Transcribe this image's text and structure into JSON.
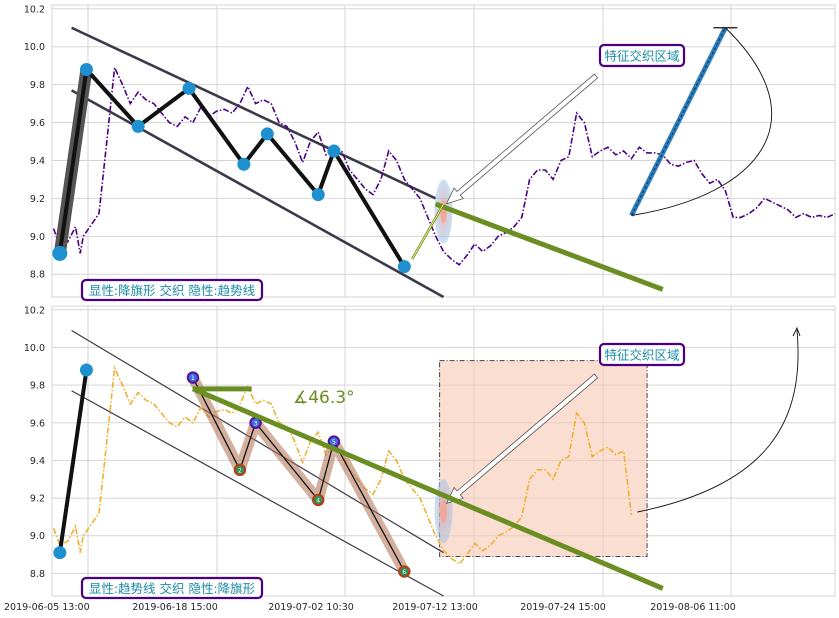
{
  "chart_data": [
    {
      "type": "line",
      "panel": "top",
      "x_ticks": [
        "2019-06-05 13:00",
        "2019-06-18 15:00",
        "2019-07-02 10:30",
        "2019-07-12 13:00",
        "2019-07-24 15:00",
        "2019-08-06 11:00"
      ],
      "y_ticks": [
        8.8,
        9.0,
        9.2,
        9.4,
        9.6,
        9.8,
        10.0,
        10.2
      ],
      "ylim": [
        8.68,
        10.22
      ],
      "grid": true,
      "series": [
        {
          "style": "dash-dot",
          "color": "#4b0082",
          "x": [
            0.2,
            1.0,
            2.0,
            3.0,
            3.6,
            4.0,
            5.0,
            6.0,
            7.0,
            8.0,
            9.0,
            10.0,
            11.0,
            12.0,
            13.0,
            14.0,
            15.0,
            16.0,
            17.0,
            18.0,
            19.0,
            20.0,
            21.0,
            22.0,
            23.0,
            24.0,
            25.0,
            26.0,
            27.0,
            28.0,
            29.0,
            30.0,
            31.0,
            32.0,
            33.0,
            34.0,
            35.0,
            36.0,
            37.0,
            38.0,
            39.0,
            40.0,
            41.0,
            42.0,
            43.0,
            44.0,
            45.0,
            46.0,
            47.0,
            48.0,
            49.0,
            50.0,
            51.0,
            52.0,
            53.0,
            54.0,
            55.0,
            56.0,
            57.0,
            58.0,
            59.0,
            60.0,
            61.0,
            62.0,
            63.0,
            64.0,
            65.0,
            66.0,
            67.0,
            68.0,
            69.0,
            70.0,
            71.0,
            72.0,
            73.0,
            74.0,
            75.0,
            76.0,
            77.0,
            78.0,
            79.0,
            80.0,
            81.0,
            82.0,
            83.0,
            84.0,
            85.0,
            86.0,
            87.0,
            88.0,
            89.0,
            90.0,
            91.0,
            92.0,
            93.0,
            94.0,
            95.0,
            96.0,
            97.0,
            98.0,
            99.0,
            100.0
          ],
          "y": [
            9.04,
            8.95,
            8.97,
            9.05,
            8.91,
            9.0,
            9.06,
            9.12,
            9.5,
            9.89,
            9.8,
            9.7,
            9.76,
            9.72,
            9.7,
            9.65,
            9.6,
            9.58,
            9.63,
            9.6,
            9.68,
            9.63,
            9.66,
            9.67,
            9.65,
            9.7,
            9.79,
            9.7,
            9.72,
            9.7,
            9.6,
            9.58,
            9.5,
            9.39,
            9.5,
            9.55,
            9.43,
            9.48,
            9.45,
            9.35,
            9.3,
            9.25,
            9.22,
            9.3,
            9.45,
            9.4,
            9.3,
            9.25,
            9.2,
            9.1,
            9.0,
            8.92,
            8.88,
            8.85,
            8.9,
            8.96,
            8.92,
            8.95,
            9.0,
            9.02,
            9.05,
            9.1,
            9.3,
            9.35,
            9.35,
            9.3,
            9.4,
            9.42,
            9.65,
            9.6,
            9.42,
            9.45,
            9.47,
            9.43,
            9.45,
            9.41,
            9.47,
            9.44,
            9.44,
            9.43,
            9.38,
            9.37,
            9.39,
            9.4,
            9.33,
            9.28,
            9.3,
            9.24,
            9.1,
            9.1,
            9.12,
            9.15,
            9.2,
            9.18,
            9.16,
            9.14,
            9.1,
            9.12,
            9.1,
            9.11,
            9.1,
            9.12
          ]
        }
      ],
      "pivots": [
        {
          "x": 1.0,
          "y": 8.91
        },
        {
          "x": 4.4,
          "y": 9.88
        },
        {
          "x": 11.0,
          "y": 9.58
        },
        {
          "x": 17.5,
          "y": 9.78
        },
        {
          "x": 24.5,
          "y": 9.38
        },
        {
          "x": 27.5,
          "y": 9.54
        },
        {
          "x": 34.0,
          "y": 9.22
        },
        {
          "x": 36.0,
          "y": 9.45
        },
        {
          "x": 45.0,
          "y": 8.84
        }
      ],
      "channel_upper": {
        "x": [
          2.5,
          49.0
        ],
        "y": [
          10.1,
          9.2
        ]
      },
      "channel_lower": {
        "x": [
          2.5,
          50.0
        ],
        "y": [
          9.77,
          8.68
        ]
      },
      "green_line": {
        "x": [
          49.0,
          78.0
        ],
        "y": [
          9.17,
          8.72
        ]
      },
      "green_short": {
        "x": [
          46.0,
          50.0
        ],
        "y": [
          8.88,
          9.17
        ]
      },
      "blue_line": {
        "x": [
          74.0,
          86.0
        ],
        "y": [
          9.11,
          10.1
        ]
      },
      "highlight": {
        "x": 50.0,
        "y": 9.13
      },
      "annotation_label": "特征交织区域",
      "legend_label": "显性:降旗形 交织 隐性:趋势线"
    },
    {
      "type": "line",
      "panel": "bottom",
      "x_ticks": [
        "2019-06-05 13:00",
        "2019-06-18 15:00",
        "2019-07-02 10:30",
        "2019-07-12 13:00",
        "2019-07-24 15:00",
        "2019-08-06 11:00"
      ],
      "y_ticks": [
        8.8,
        9.0,
        9.2,
        9.4,
        9.6,
        9.8,
        10.0,
        10.2
      ],
      "ylim": [
        8.68,
        10.22
      ],
      "grid": true,
      "series": [
        {
          "style": "dash-dot",
          "color": "#f0b030",
          "x": [
            0.2,
            1.0,
            2.0,
            3.0,
            3.6,
            4.0,
            5.0,
            6.0,
            7.0,
            8.0,
            9.0,
            10.0,
            11.0,
            12.0,
            13.0,
            14.0,
            15.0,
            16.0,
            17.0,
            18.0,
            19.0,
            20.0,
            21.0,
            22.0,
            23.0,
            24.0,
            25.0,
            26.0,
            27.0,
            28.0,
            29.0,
            30.0,
            31.0,
            32.0,
            33.0,
            34.0,
            35.0,
            36.0,
            37.0,
            38.0,
            39.0,
            40.0,
            41.0,
            42.0,
            43.0,
            44.0,
            45.0,
            46.0,
            47.0,
            48.0,
            49.0,
            50.0,
            51.0,
            52.0,
            53.0,
            54.0,
            55.0,
            56.0,
            57.0,
            58.0,
            59.0,
            60.0,
            61.0,
            62.0,
            63.0,
            64.0,
            65.0,
            66.0,
            67.0,
            68.0,
            69.0,
            70.0,
            71.0,
            72.0,
            73.0,
            74.0
          ],
          "y": [
            9.04,
            8.95,
            8.97,
            9.05,
            8.91,
            9.0,
            9.06,
            9.12,
            9.5,
            9.89,
            9.8,
            9.7,
            9.76,
            9.72,
            9.7,
            9.65,
            9.6,
            9.58,
            9.63,
            9.6,
            9.68,
            9.63,
            9.66,
            9.67,
            9.65,
            9.7,
            9.79,
            9.7,
            9.72,
            9.7,
            9.6,
            9.58,
            9.5,
            9.39,
            9.5,
            9.55,
            9.43,
            9.48,
            9.45,
            9.35,
            9.3,
            9.25,
            9.22,
            9.3,
            9.45,
            9.4,
            9.3,
            9.25,
            9.2,
            9.1,
            9.0,
            8.92,
            8.88,
            8.85,
            8.9,
            8.96,
            8.92,
            8.95,
            9.0,
            9.02,
            9.05,
            9.1,
            9.3,
            9.35,
            9.35,
            9.3,
            9.4,
            9.42,
            9.65,
            9.6,
            9.42,
            9.45,
            9.47,
            9.43,
            9.45,
            9.11
          ]
        }
      ],
      "pivot_ends": [
        {
          "x": 1.0,
          "y": 8.91
        },
        {
          "x": 4.4,
          "y": 9.88
        }
      ],
      "numbered_highs": [
        {
          "x": 18.0,
          "y": 9.84,
          "label": "1"
        },
        {
          "x": 26.0,
          "y": 9.6,
          "label": "3"
        },
        {
          "x": 36.0,
          "y": 9.5,
          "label": "5"
        }
      ],
      "numbered_lows": [
        {
          "x": 24.0,
          "y": 9.35,
          "label": "2"
        },
        {
          "x": 34.0,
          "y": 9.19,
          "label": "4"
        },
        {
          "x": 45.0,
          "y": 8.81,
          "label": "6"
        }
      ],
      "channel_upper": {
        "x": [
          2.5,
          50.0
        ],
        "y": [
          10.09,
          8.91
        ]
      },
      "channel_lower": {
        "x": [
          2.5,
          50.0
        ],
        "y": [
          9.77,
          8.68
        ]
      },
      "green_line": {
        "x": [
          18.0,
          78.0
        ],
        "y": [
          9.78,
          8.72
        ]
      },
      "green_flat": {
        "x": [
          18.0,
          25.5
        ],
        "y": [
          9.78,
          9.78
        ]
      },
      "angle_label": "∡46.3°",
      "shaded_region": {
        "x": [
          49.5,
          76.0
        ],
        "y": [
          8.89,
          9.93
        ]
      },
      "highlight": {
        "x": 50.0,
        "y": 9.13
      },
      "annotation_label": "特征交织区域",
      "legend_label": "显性:趋势线 交织 隐性:降旗形"
    }
  ]
}
